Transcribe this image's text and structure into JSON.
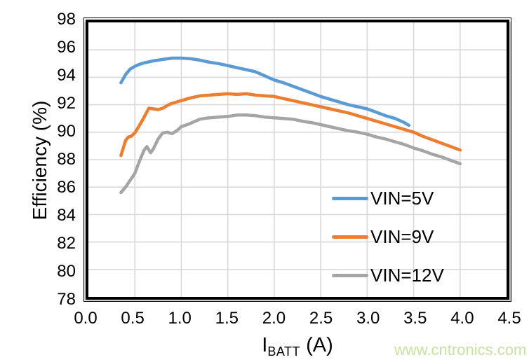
{
  "watermark": "www.cntronics.com",
  "colors": {
    "series_blue": "#5B9BD5",
    "series_orange": "#ED7D31",
    "series_gray": "#A5A5A5",
    "grid": "#D9D9D9",
    "plot_border": "#000000",
    "text": "#000000",
    "watermark": "#c6e29f"
  },
  "chart_data": {
    "type": "line",
    "title": "",
    "ylabel": "Efficiency (%)",
    "xlabel": {
      "main": "I",
      "sub": "BATT",
      "unit": " (A)"
    },
    "xlim": [
      0,
      4.5
    ],
    "ylim": [
      78,
      98
    ],
    "x_tick_labels": [
      "0.0",
      "0.5",
      "1.0",
      "1.5",
      "2.0",
      "2.5",
      "3.0",
      "3.5",
      "4.0",
      "4.5"
    ],
    "x_tick_values": [
      0,
      0.5,
      1,
      1.5,
      2,
      2.5,
      3,
      3.5,
      4,
      4.5
    ],
    "y_tick_labels": [
      "98",
      "96",
      "94",
      "92",
      "90",
      "88",
      "86",
      "84",
      "82",
      "80",
      "78"
    ],
    "y_tick_values": [
      98,
      96,
      94,
      92,
      90,
      88,
      86,
      84,
      82,
      80,
      78
    ],
    "grid": true,
    "legend_position": "inside-lower-right",
    "series": [
      {
        "name": "VIN=5V",
        "color": "#5B9BD5",
        "points": [
          [
            0.35,
            93.6
          ],
          [
            0.4,
            94.2
          ],
          [
            0.45,
            94.6
          ],
          [
            0.5,
            94.8
          ],
          [
            0.55,
            94.95
          ],
          [
            0.6,
            95.05
          ],
          [
            0.7,
            95.2
          ],
          [
            0.8,
            95.3
          ],
          [
            0.9,
            95.4
          ],
          [
            1.0,
            95.4
          ],
          [
            1.1,
            95.35
          ],
          [
            1.2,
            95.25
          ],
          [
            1.3,
            95.1
          ],
          [
            1.4,
            95.0
          ],
          [
            1.5,
            94.85
          ],
          [
            1.6,
            94.7
          ],
          [
            1.7,
            94.55
          ],
          [
            1.8,
            94.4
          ],
          [
            1.9,
            94.1
          ],
          [
            2.0,
            93.8
          ],
          [
            2.1,
            93.6
          ],
          [
            2.2,
            93.35
          ],
          [
            2.3,
            93.1
          ],
          [
            2.4,
            92.85
          ],
          [
            2.5,
            92.6
          ],
          [
            2.6,
            92.4
          ],
          [
            2.7,
            92.2
          ],
          [
            2.8,
            92.0
          ],
          [
            2.9,
            91.85
          ],
          [
            3.0,
            91.7
          ],
          [
            3.1,
            91.45
          ],
          [
            3.2,
            91.2
          ],
          [
            3.3,
            91.0
          ],
          [
            3.4,
            90.7
          ],
          [
            3.45,
            90.5
          ]
        ]
      },
      {
        "name": "VIN=9V",
        "color": "#ED7D31",
        "points": [
          [
            0.35,
            88.3
          ],
          [
            0.4,
            89.4
          ],
          [
            0.43,
            89.65
          ],
          [
            0.46,
            89.7
          ],
          [
            0.5,
            89.95
          ],
          [
            0.55,
            90.5
          ],
          [
            0.6,
            91.1
          ],
          [
            0.65,
            91.75
          ],
          [
            0.7,
            91.7
          ],
          [
            0.75,
            91.65
          ],
          [
            0.8,
            91.75
          ],
          [
            0.85,
            91.95
          ],
          [
            0.9,
            92.1
          ],
          [
            1.0,
            92.3
          ],
          [
            1.1,
            92.5
          ],
          [
            1.2,
            92.65
          ],
          [
            1.3,
            92.7
          ],
          [
            1.4,
            92.75
          ],
          [
            1.5,
            92.8
          ],
          [
            1.6,
            92.75
          ],
          [
            1.7,
            92.8
          ],
          [
            1.8,
            92.7
          ],
          [
            1.9,
            92.65
          ],
          [
            2.0,
            92.6
          ],
          [
            2.1,
            92.45
          ],
          [
            2.2,
            92.3
          ],
          [
            2.3,
            92.15
          ],
          [
            2.4,
            92.0
          ],
          [
            2.5,
            91.85
          ],
          [
            2.6,
            91.7
          ],
          [
            2.7,
            91.55
          ],
          [
            2.8,
            91.4
          ],
          [
            2.9,
            91.2
          ],
          [
            3.0,
            91.0
          ],
          [
            3.1,
            90.8
          ],
          [
            3.2,
            90.6
          ],
          [
            3.3,
            90.4
          ],
          [
            3.4,
            90.2
          ],
          [
            3.5,
            90.0
          ],
          [
            3.6,
            89.7
          ],
          [
            3.7,
            89.45
          ],
          [
            3.8,
            89.2
          ],
          [
            3.9,
            88.95
          ],
          [
            4.0,
            88.7
          ]
        ]
      },
      {
        "name": "VIN=12V",
        "color": "#A5A5A5",
        "points": [
          [
            0.35,
            85.6
          ],
          [
            0.4,
            86.0
          ],
          [
            0.45,
            86.5
          ],
          [
            0.5,
            87.0
          ],
          [
            0.55,
            87.9
          ],
          [
            0.6,
            88.7
          ],
          [
            0.63,
            88.95
          ],
          [
            0.67,
            88.5
          ],
          [
            0.7,
            88.8
          ],
          [
            0.75,
            89.5
          ],
          [
            0.8,
            89.95
          ],
          [
            0.85,
            90.0
          ],
          [
            0.9,
            89.9
          ],
          [
            0.95,
            90.1
          ],
          [
            1.0,
            90.4
          ],
          [
            1.1,
            90.65
          ],
          [
            1.2,
            90.95
          ],
          [
            1.3,
            91.05
          ],
          [
            1.4,
            91.1
          ],
          [
            1.5,
            91.15
          ],
          [
            1.6,
            91.25
          ],
          [
            1.7,
            91.25
          ],
          [
            1.8,
            91.2
          ],
          [
            1.9,
            91.1
          ],
          [
            2.0,
            91.05
          ],
          [
            2.1,
            91.0
          ],
          [
            2.2,
            90.95
          ],
          [
            2.3,
            90.8
          ],
          [
            2.4,
            90.7
          ],
          [
            2.5,
            90.55
          ],
          [
            2.6,
            90.4
          ],
          [
            2.7,
            90.25
          ],
          [
            2.8,
            90.1
          ],
          [
            2.9,
            90.0
          ],
          [
            3.0,
            89.85
          ],
          [
            3.1,
            89.65
          ],
          [
            3.2,
            89.5
          ],
          [
            3.3,
            89.3
          ],
          [
            3.4,
            89.1
          ],
          [
            3.5,
            88.85
          ],
          [
            3.6,
            88.65
          ],
          [
            3.7,
            88.4
          ],
          [
            3.8,
            88.2
          ],
          [
            3.9,
            87.95
          ],
          [
            4.0,
            87.7
          ]
        ]
      }
    ]
  }
}
